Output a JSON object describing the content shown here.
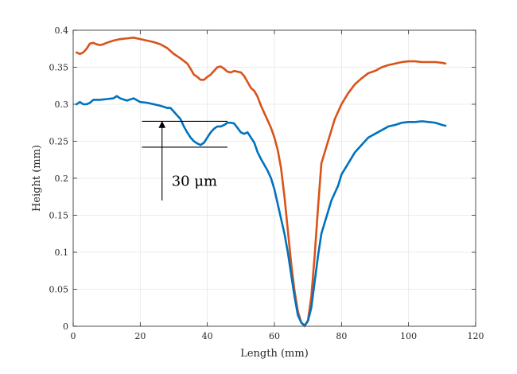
{
  "chart_data": {
    "type": "line",
    "title": "",
    "xlabel": "Length (mm)",
    "ylabel": "Height (mm)",
    "xlim": [
      0,
      120
    ],
    "ylim": [
      0,
      0.4
    ],
    "xticks": [
      0,
      20,
      40,
      60,
      80,
      100,
      120
    ],
    "yticks": [
      0,
      0.05,
      0.1,
      0.15,
      0.2,
      0.25,
      0.3,
      0.35,
      0.4
    ],
    "xtick_labels": [
      "0",
      "20",
      "40",
      "60",
      "80",
      "100",
      "120"
    ],
    "ytick_labels": [
      "0",
      "0.05",
      "0.1",
      "0.15",
      "0.2",
      "0.25",
      "0.3",
      "0.35",
      "0.4"
    ],
    "grid": true,
    "series": [
      {
        "color": "#D95319",
        "x": [
          1,
          2,
          3,
          4,
          5,
          6,
          7,
          8,
          9,
          10,
          12,
          14,
          16,
          18,
          20,
          22,
          24,
          26,
          28,
          30,
          32,
          34,
          35,
          36,
          37,
          38,
          39,
          40,
          41,
          42,
          43,
          44,
          45,
          46,
          47,
          48,
          49,
          50,
          51,
          52,
          53,
          54,
          55,
          56,
          57,
          58,
          59,
          60,
          61,
          62,
          63,
          64,
          65,
          66,
          67,
          68,
          69,
          70,
          71,
          72,
          73,
          74,
          75,
          76,
          77,
          78,
          79,
          80,
          82,
          84,
          86,
          88,
          90,
          92,
          94,
          96,
          98,
          100,
          102,
          104,
          106,
          108,
          110,
          111
        ],
        "y": [
          0.37,
          0.368,
          0.37,
          0.375,
          0.382,
          0.383,
          0.381,
          0.38,
          0.381,
          0.383,
          0.386,
          0.388,
          0.389,
          0.39,
          0.388,
          0.386,
          0.384,
          0.381,
          0.376,
          0.368,
          0.362,
          0.355,
          0.348,
          0.34,
          0.337,
          0.333,
          0.333,
          0.337,
          0.34,
          0.345,
          0.35,
          0.351,
          0.348,
          0.344,
          0.343,
          0.345,
          0.344,
          0.343,
          0.338,
          0.33,
          0.322,
          0.318,
          0.31,
          0.298,
          0.288,
          0.278,
          0.268,
          0.255,
          0.238,
          0.213,
          0.175,
          0.13,
          0.085,
          0.048,
          0.02,
          0.005,
          0.0,
          0.008,
          0.04,
          0.095,
          0.16,
          0.22,
          0.235,
          0.25,
          0.265,
          0.28,
          0.29,
          0.3,
          0.315,
          0.327,
          0.335,
          0.342,
          0.345,
          0.35,
          0.353,
          0.355,
          0.357,
          0.358,
          0.358,
          0.357,
          0.357,
          0.357,
          0.356,
          0.355
        ]
      },
      {
        "color": "#0072BD",
        "x": [
          1,
          2,
          3,
          4,
          5,
          6,
          8,
          10,
          12,
          13,
          14,
          16,
          18,
          20,
          22,
          24,
          26,
          28,
          29,
          30,
          31,
          32,
          33,
          34,
          35,
          36,
          37,
          38,
          39,
          40,
          41,
          42,
          43,
          44,
          45,
          46,
          47,
          48,
          49,
          50,
          51,
          52,
          53,
          54,
          55,
          56,
          57,
          58,
          59,
          60,
          61,
          62,
          63,
          64,
          65,
          66,
          67,
          68,
          69,
          70,
          71,
          72,
          73,
          74,
          75,
          76,
          77,
          78,
          79,
          80,
          82,
          84,
          86,
          88,
          90,
          92,
          94,
          96,
          98,
          100,
          102,
          104,
          106,
          108,
          110,
          111
        ],
        "y": [
          0.3,
          0.303,
          0.3,
          0.3,
          0.302,
          0.306,
          0.306,
          0.307,
          0.308,
          0.311,
          0.308,
          0.305,
          0.308,
          0.303,
          0.302,
          0.3,
          0.298,
          0.295,
          0.295,
          0.29,
          0.285,
          0.28,
          0.27,
          0.262,
          0.255,
          0.25,
          0.247,
          0.245,
          0.248,
          0.255,
          0.262,
          0.267,
          0.27,
          0.27,
          0.272,
          0.275,
          0.275,
          0.274,
          0.268,
          0.262,
          0.26,
          0.262,
          0.255,
          0.248,
          0.235,
          0.226,
          0.218,
          0.21,
          0.2,
          0.185,
          0.165,
          0.145,
          0.125,
          0.1,
          0.07,
          0.04,
          0.015,
          0.005,
          0.001,
          0.007,
          0.025,
          0.06,
          0.095,
          0.125,
          0.14,
          0.155,
          0.17,
          0.18,
          0.19,
          0.205,
          0.22,
          0.235,
          0.245,
          0.255,
          0.26,
          0.265,
          0.27,
          0.272,
          0.275,
          0.276,
          0.276,
          0.277,
          0.276,
          0.275,
          0.272,
          0.271
        ]
      }
    ],
    "annotation": {
      "text": "30 μm",
      "upper_y": 0.277,
      "lower_y": 0.242,
      "hline_x": [
        20.5,
        46
      ],
      "arrow_x": 26.5,
      "arrow_tail_y": 0.17
    }
  }
}
